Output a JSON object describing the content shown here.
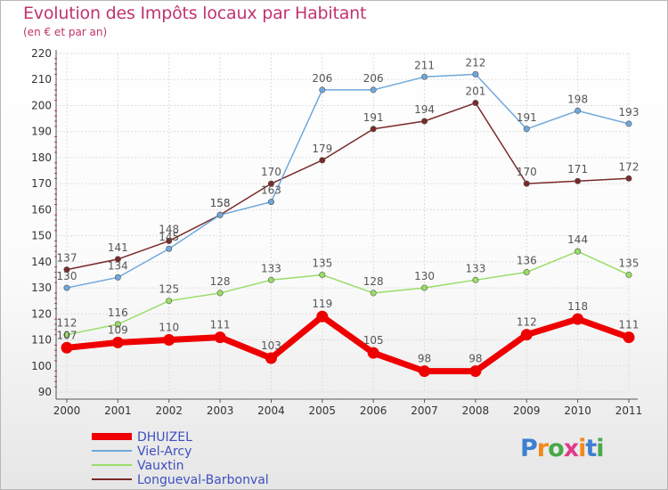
{
  "header": {
    "title": "Evolution des Impôts locaux par Habitant",
    "subtitle": "(en € et par an)"
  },
  "logo": {
    "text": "Proxiti"
  },
  "chart_data": {
    "type": "line",
    "title": "Evolution des Impôts locaux par Habitant",
    "subtitle": "(en € et par an)",
    "xlabel": "",
    "ylabel": "",
    "x": [
      "2000",
      "2001",
      "2002",
      "2003",
      "2004",
      "2005",
      "2006",
      "2007",
      "2008",
      "2009",
      "2010",
      "2011"
    ],
    "ylim": [
      90,
      220
    ],
    "yticks": [
      90,
      100,
      110,
      120,
      130,
      140,
      150,
      160,
      170,
      180,
      190,
      200,
      210,
      220
    ],
    "grid": true,
    "legend_position": "bottom-left",
    "series": [
      {
        "name": "DHUIZEL",
        "color": "#ee0000",
        "values": [
          107,
          109,
          110,
          111,
          103,
          119,
          105,
          98,
          98,
          112,
          118,
          111
        ]
      },
      {
        "name": "Viel-Arcy",
        "color": "#6fa8dc",
        "values": [
          130,
          134,
          145,
          158,
          163,
          206,
          206,
          211,
          212,
          191,
          198,
          193
        ]
      },
      {
        "name": "Vauxtin",
        "color": "#99dd66",
        "values": [
          112,
          116,
          125,
          128,
          133,
          135,
          128,
          130,
          133,
          136,
          144,
          135
        ]
      },
      {
        "name": "Longueval-Barbonval",
        "color": "#7a2a2a",
        "values": [
          137,
          141,
          148,
          158,
          170,
          179,
          191,
          194,
          201,
          170,
          171,
          172
        ]
      }
    ]
  }
}
